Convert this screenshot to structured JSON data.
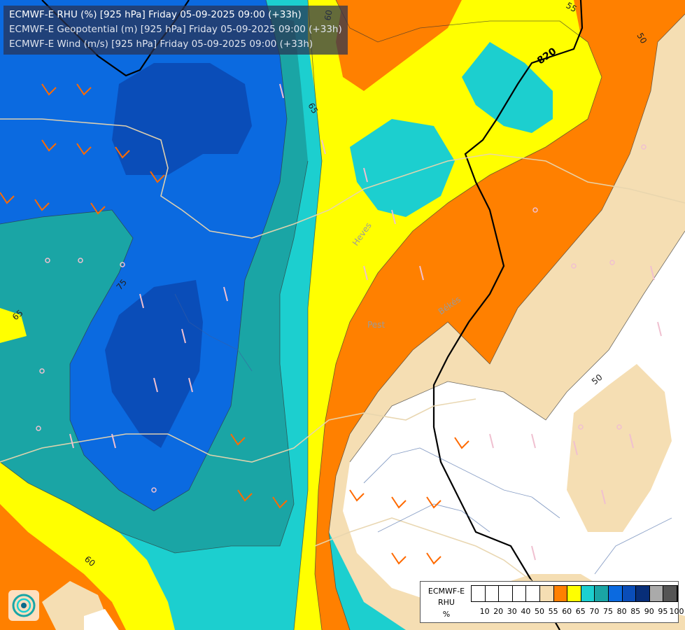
{
  "header": {
    "line1": "ECMWF-E RHU (%) [925 hPa] Friday 05-09-2025 09:00 (+33h)",
    "line2": "ECMWF-E Geopotential (m) [925 hPa] Friday 05-09-2025 09:00 (+33h)",
    "line3": "ECMWF-E Wind (m/s) [925 hPa] Friday 05-09-2025 09:00 (+33h)"
  },
  "map": {
    "band_colors": {
      "white": "#ffffff",
      "tan": "#f5deb3",
      "orange": "#ff8000",
      "yellow": "#ffff00",
      "light_cyan": "#1ccfcf",
      "dark_cyan": "#1aa5a5",
      "mid_blue": "#0b6ae0",
      "dark_blue": "#0a4db8"
    },
    "contour_labels": [
      "50",
      "55",
      "60",
      "65",
      "75",
      "65",
      "50",
      "60",
      "55"
    ],
    "geopotential_label": "820",
    "place_labels": [
      "Heves",
      "Pest",
      "Békés"
    ]
  },
  "legend": {
    "title_line1": "ECMWF-E",
    "title_line2": "RHU",
    "unit": "%",
    "ticks": [
      "10",
      "20",
      "30",
      "40",
      "50",
      "55",
      "60",
      "65",
      "70",
      "75",
      "80",
      "85",
      "90",
      "95",
      "100"
    ],
    "colors": [
      "#ffffff",
      "#ffffff",
      "#ffffff",
      "#ffffff",
      "#ffffff",
      "#f5deb3",
      "#ff8000",
      "#ffff00",
      "#1ccfcf",
      "#1aa5a5",
      "#0b6ae0",
      "#0a4db8",
      "#082e78",
      "#aaaaaa",
      "#555555"
    ]
  },
  "logo": {
    "icon": "ecmwf-swirl-logo-icon"
  }
}
